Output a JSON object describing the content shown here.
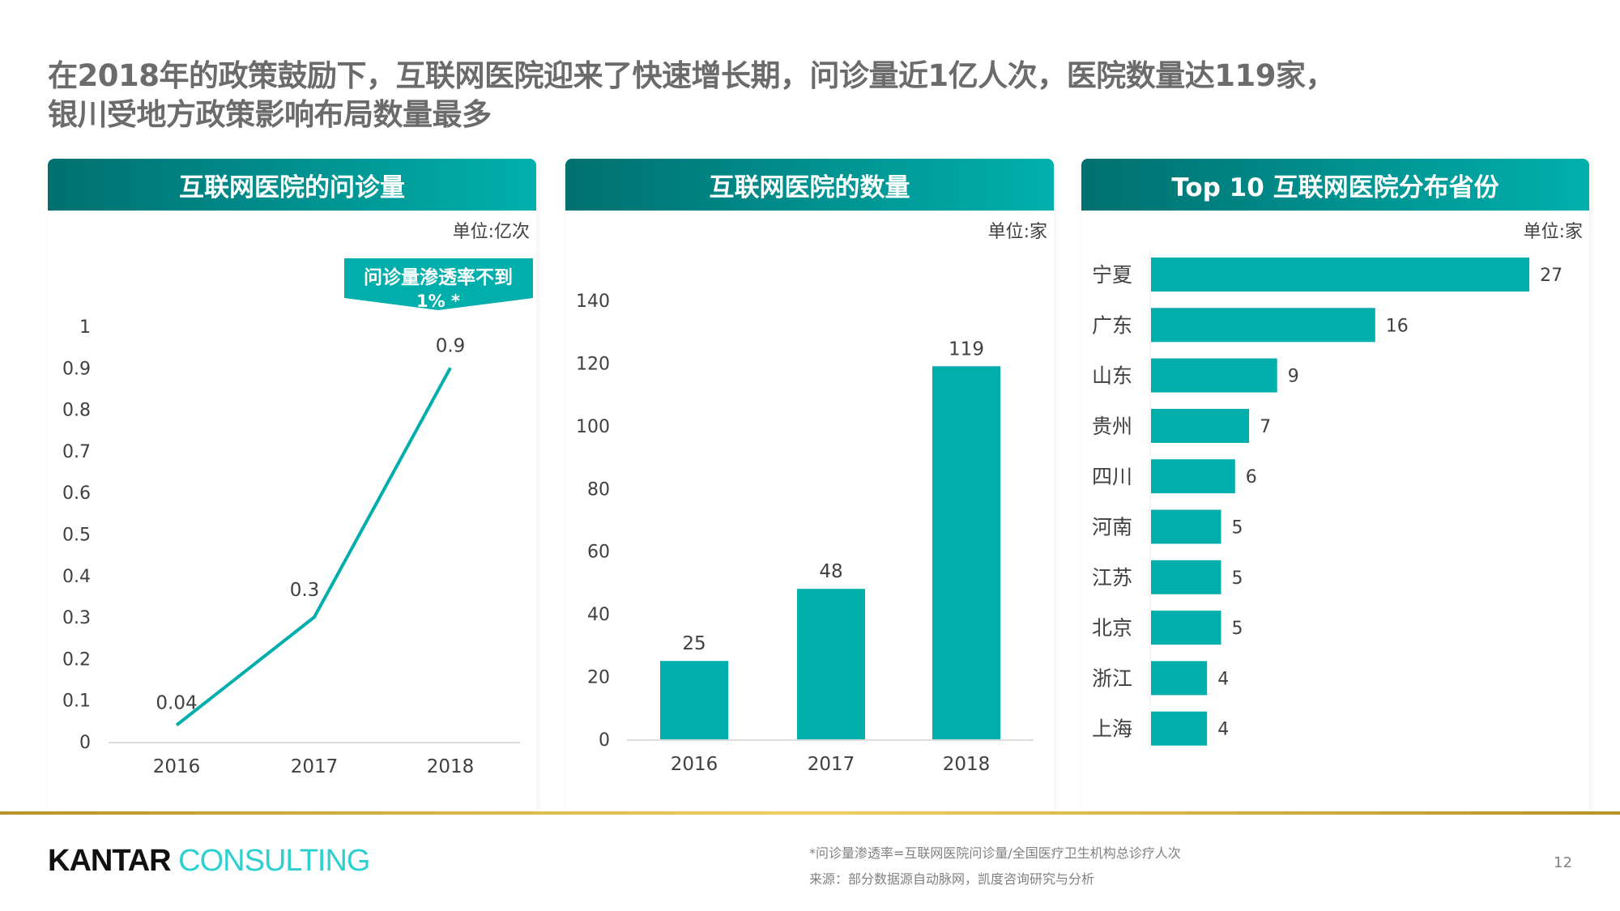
{
  "title": {
    "line1": "在2018年的政策鼓励下，互联网医院迎来了快速增长期，问诊量近1亿人次，医院数量达119家，",
    "line2": "银川受地方政策影响布局数量最多"
  },
  "colors": {
    "accent": "#00aeab",
    "header_start": "#00706f",
    "header_end": "#00b0ad",
    "gold": "#d4b040"
  },
  "chart_data": [
    {
      "type": "line",
      "title": "互联网医院的问诊量",
      "unit": "单位:亿次",
      "categories": [
        "2016",
        "2017",
        "2018"
      ],
      "values": [
        0.04,
        0.3,
        0.9
      ],
      "data_labels": [
        "0.04",
        "0.3",
        "0.9"
      ],
      "ylim": [
        0,
        1
      ],
      "yticks": [
        "0",
        "0.1",
        "0.2",
        "0.3",
        "0.4",
        "0.5",
        "0.6",
        "0.7",
        "0.8",
        "0.9",
        "1"
      ],
      "annotation": "问诊量渗透率不到1%*",
      "annotation_line1": "问诊量渗透率不到",
      "annotation_line2": "1% *"
    },
    {
      "type": "bar",
      "title": "互联网医院的数量",
      "unit": "单位:家",
      "categories": [
        "2016",
        "2017",
        "2018"
      ],
      "values": [
        25,
        48,
        119
      ],
      "data_labels": [
        "25",
        "48",
        "119"
      ],
      "ylim": [
        0,
        140
      ],
      "yticks": [
        "0",
        "20",
        "40",
        "60",
        "80",
        "100",
        "120",
        "140"
      ]
    },
    {
      "type": "bar",
      "orientation": "horizontal",
      "title": "Top 10 互联网医院分布省份",
      "unit": "单位:家",
      "categories": [
        "宁夏",
        "广东",
        "山东",
        "贵州",
        "四川",
        "河南",
        "江苏",
        "北京",
        "浙江",
        "上海"
      ],
      "values": [
        27,
        16,
        9,
        7,
        6,
        5,
        5,
        5,
        4,
        4
      ],
      "data_labels": [
        "27",
        "16",
        "9",
        "7",
        "6",
        "5",
        "5",
        "5",
        "4",
        "4"
      ]
    }
  ],
  "footer": {
    "logo": "KANTAR CONSULTING",
    "logo_k": "KANTAR",
    "logo_c": "CONSULTING",
    "footnote": "*问诊量渗透率=互联网医院问诊量/全国医疗卫生机构总诊疗人次",
    "source": "来源：部分数据源自动脉网，凯度咨询研究与分析",
    "page": "12"
  }
}
